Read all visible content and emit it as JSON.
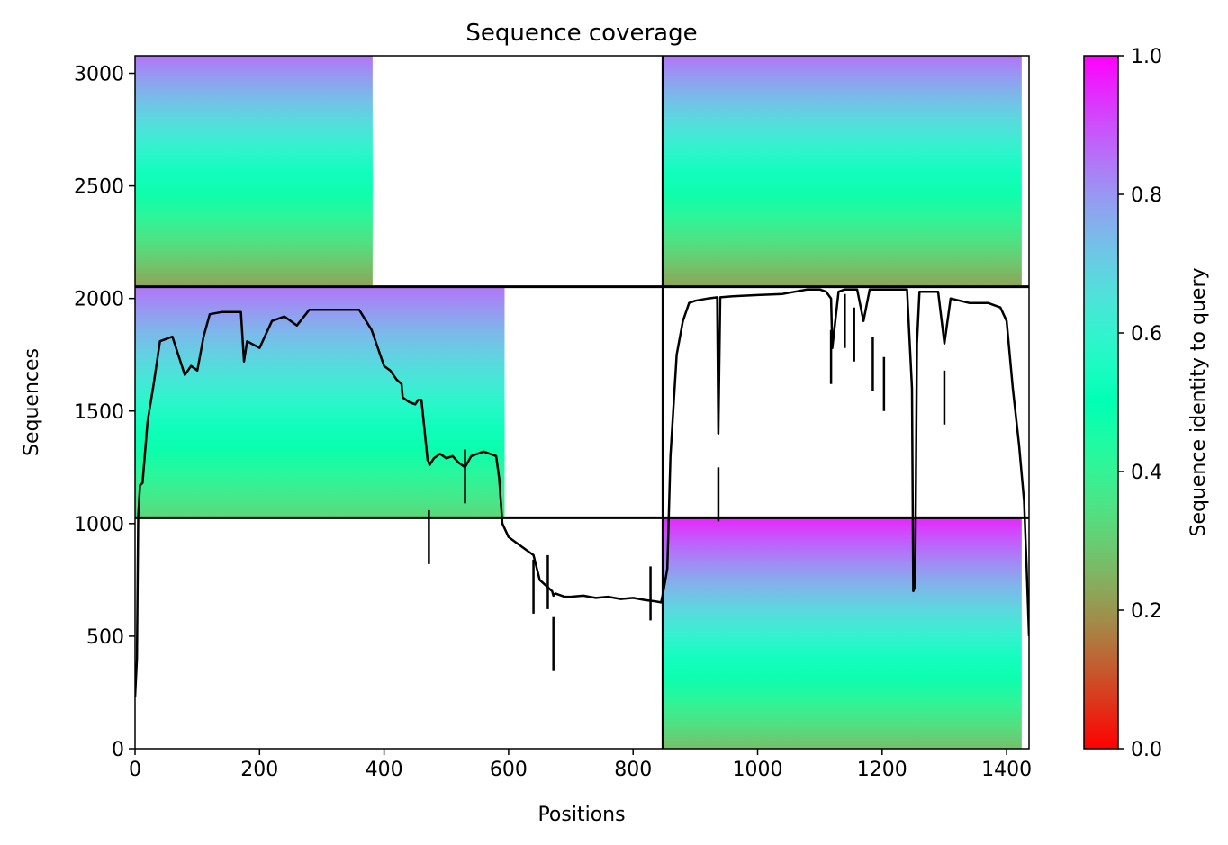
{
  "chart_data": {
    "type": "heatmap",
    "title": "Sequence coverage",
    "xlabel": "Positions",
    "ylabel": "Sequences",
    "xlim": [
      0,
      1436
    ],
    "ylim": [
      0,
      3078
    ],
    "x_ticks": [
      0,
      200,
      400,
      600,
      800,
      1000,
      1200,
      1400
    ],
    "y_ticks": [
      0,
      500,
      1000,
      1500,
      2000,
      2500,
      3000
    ],
    "colorbar": {
      "label": "Sequence identity to query",
      "colormap": "rainbow_r",
      "range": [
        0.0,
        1.0
      ],
      "ticks": [
        0.0,
        0.2,
        0.4,
        0.6,
        0.8,
        1.0
      ],
      "tick_labels": [
        "0.0",
        "0.2",
        "0.4",
        "0.6",
        "0.8",
        "1.0"
      ]
    },
    "chain_boundaries": {
      "x": 848,
      "y": [
        1026,
        2052
      ]
    },
    "coverage_blocks": [
      {
        "name": "chain-a-block-1",
        "x": [
          0,
          848
        ],
        "y": [
          2052,
          3078
        ],
        "id_bottom": 0.22,
        "id_top": 0.85,
        "colored_to": 0.45
      },
      {
        "name": "chain-a-block-2",
        "x": [
          0,
          848
        ],
        "y": [
          1026,
          2052
        ],
        "id_bottom": 0.32,
        "id_top": 0.85,
        "colored_to": 0.7
      },
      {
        "name": "chain-b-block-1",
        "x": [
          848,
          1436
        ],
        "y": [
          2052,
          3078
        ],
        "id_bottom": 0.22,
        "id_top": 0.85,
        "colored_to": 0.98
      },
      {
        "name": "chain-b-block-2",
        "x": [
          848,
          1436
        ],
        "y": [
          0,
          1026
        ],
        "id_bottom": 0.27,
        "id_top": 0.95,
        "colored_to": 0.98
      }
    ],
    "coverage_line": {
      "color": "#000000",
      "x": [
        0,
        3,
        5,
        8,
        12,
        20,
        30,
        40,
        60,
        80,
        90,
        100,
        110,
        120,
        140,
        170,
        175,
        180,
        200,
        220,
        240,
        260,
        280,
        300,
        318,
        320,
        340,
        360,
        380,
        400,
        410,
        420,
        428,
        430,
        440,
        450,
        455,
        460,
        470,
        471,
        473,
        480,
        490,
        500,
        510,
        520,
        530,
        540,
        560,
        580,
        585,
        590,
        600,
        610,
        620,
        630,
        640,
        650,
        670,
        672,
        675,
        690,
        700,
        720,
        740,
        760,
        780,
        800,
        820,
        835,
        845,
        848,
        855,
        860,
        870,
        880,
        890,
        900,
        920,
        935,
        937,
        940,
        960,
        1000,
        1040,
        1060,
        1080,
        1100,
        1110,
        1118,
        1120,
        1130,
        1140,
        1160,
        1170,
        1180,
        1200,
        1220,
        1240,
        1248,
        1250,
        1253,
        1256,
        1260,
        1280,
        1290,
        1300,
        1310,
        1340,
        1370,
        1390,
        1400,
        1410,
        1420,
        1428,
        1432,
        1436
      ],
      "y": [
        228,
        400,
        1030,
        1170,
        1180,
        1450,
        1620,
        1810,
        1830,
        1660,
        1700,
        1680,
        1830,
        1930,
        1940,
        1940,
        1720,
        1810,
        1780,
        1900,
        1920,
        1880,
        1950,
        1950,
        1950,
        1950,
        1950,
        1950,
        1860,
        1700,
        1680,
        1640,
        1620,
        1560,
        1540,
        1530,
        1550,
        1550,
        1280,
        1280,
        1260,
        1290,
        1310,
        1290,
        1300,
        1270,
        1250,
        1300,
        1320,
        1300,
        1200,
        1000,
        940,
        920,
        900,
        880,
        860,
        750,
        700,
        680,
        690,
        675,
        675,
        680,
        670,
        675,
        665,
        670,
        660,
        655,
        650,
        690,
        800,
        1300,
        1750,
        1900,
        1980,
        1990,
        2000,
        2005,
        1400,
        2005,
        2010,
        2015,
        2020,
        2030,
        2040,
        2040,
        2030,
        2000,
        1780,
        2030,
        2040,
        2040,
        1900,
        2040,
        2040,
        2040,
        2040,
        1600,
        700,
        720,
        1800,
        2030,
        2030,
        2030,
        1800,
        2000,
        1980,
        1980,
        1960,
        1900,
        1600,
        1350,
        1100,
        820,
        500
      ]
    },
    "coverage_dips": [
      {
        "x": 472,
        "y": 820
      },
      {
        "x": 530,
        "y": 1090
      },
      {
        "x": 640,
        "y": 600
      },
      {
        "x": 663,
        "y": 620
      },
      {
        "x": 672,
        "y": 345
      },
      {
        "x": 828,
        "y": 570
      },
      {
        "x": 937,
        "y": 1010
      },
      {
        "x": 1118,
        "y": 1620
      },
      {
        "x": 1140,
        "y": 1780
      },
      {
        "x": 1155,
        "y": 1720
      },
      {
        "x": 1185,
        "y": 1590
      },
      {
        "x": 1203,
        "y": 1500
      },
      {
        "x": 1300,
        "y": 1440
      }
    ]
  }
}
